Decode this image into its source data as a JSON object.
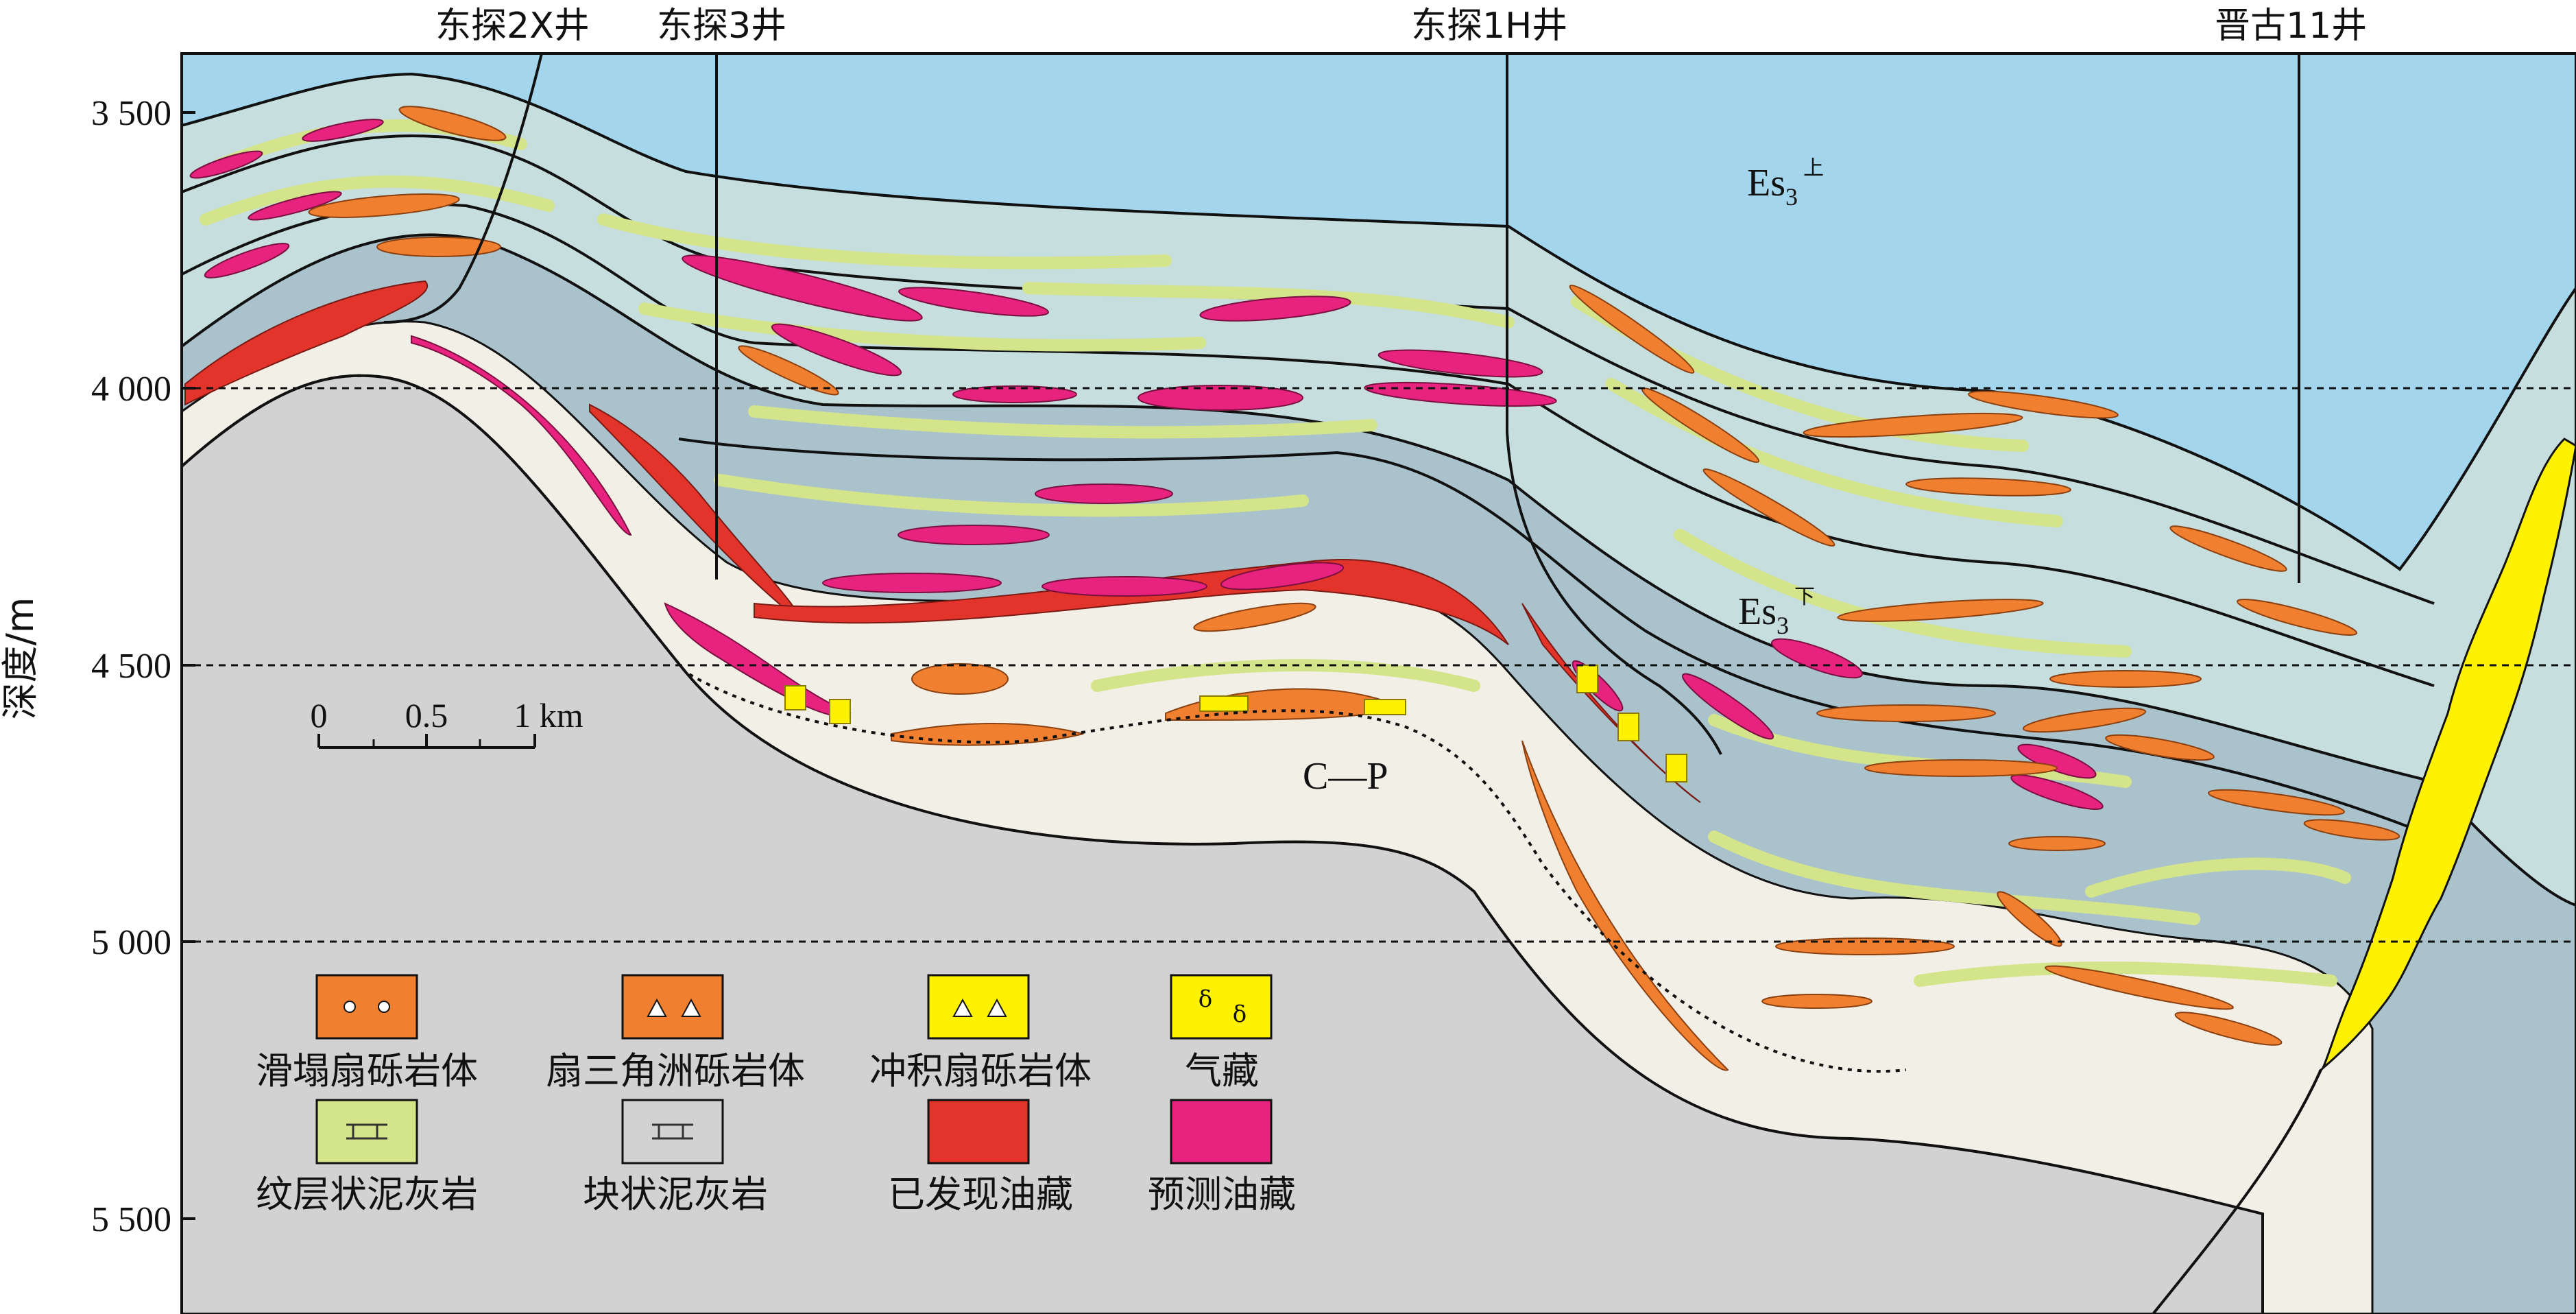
{
  "wells": [
    {
      "name": "东探2X井"
    },
    {
      "name": "东探3井"
    },
    {
      "name": "东探1H井"
    },
    {
      "name": "晋古11井"
    }
  ],
  "depth_axis": {
    "title": "深度/m",
    "ticks": [
      "3 500",
      "4 000",
      "4 500",
      "5 000",
      "5 500"
    ]
  },
  "formations": {
    "upper": {
      "base": "Es",
      "sub": "3",
      "sup": "上"
    },
    "lower": {
      "base": "Es",
      "sub": "3",
      "sup": "下"
    },
    "basement": "C—P"
  },
  "scale_bar": {
    "labels": [
      "0",
      "0.5",
      "1 km"
    ]
  },
  "legend": [
    {
      "label": "滑塌扇砾岩体",
      "color": "#f08030",
      "pattern": "circles"
    },
    {
      "label": "扇三角洲砾岩体",
      "color": "#f08030",
      "pattern": "triangles"
    },
    {
      "label": "冲积扇砾岩体",
      "color": "#fff200",
      "pattern": "triangles"
    },
    {
      "label": "气藏",
      "color": "#fff200",
      "pattern": "delta"
    },
    {
      "label": "纹层状泥灰岩",
      "color": "#d4e48a",
      "pattern": "marl"
    },
    {
      "label": "块状泥灰岩",
      "color": "#d2d2d2",
      "pattern": "marl"
    },
    {
      "label": "已发现油藏",
      "color": "#e3342b",
      "pattern": "none"
    },
    {
      "label": "预测油藏",
      "color": "#e8237f",
      "pattern": "none"
    }
  ],
  "colors": {
    "water": "#a3d6ec",
    "upper_shale": "#c6dedd",
    "lower_shale": "#a9c2cc",
    "marl_light": "#f2efe6",
    "massive_marl": "#d2d2d2",
    "laminated_marl": "#d4e48a",
    "slump_conglomerate": "#f08030",
    "fan_delta_conglomerate": "#f08030",
    "alluvial_fan": "#fff200",
    "found_oil": "#e3342b",
    "predicted_oil": "#e8237f"
  }
}
